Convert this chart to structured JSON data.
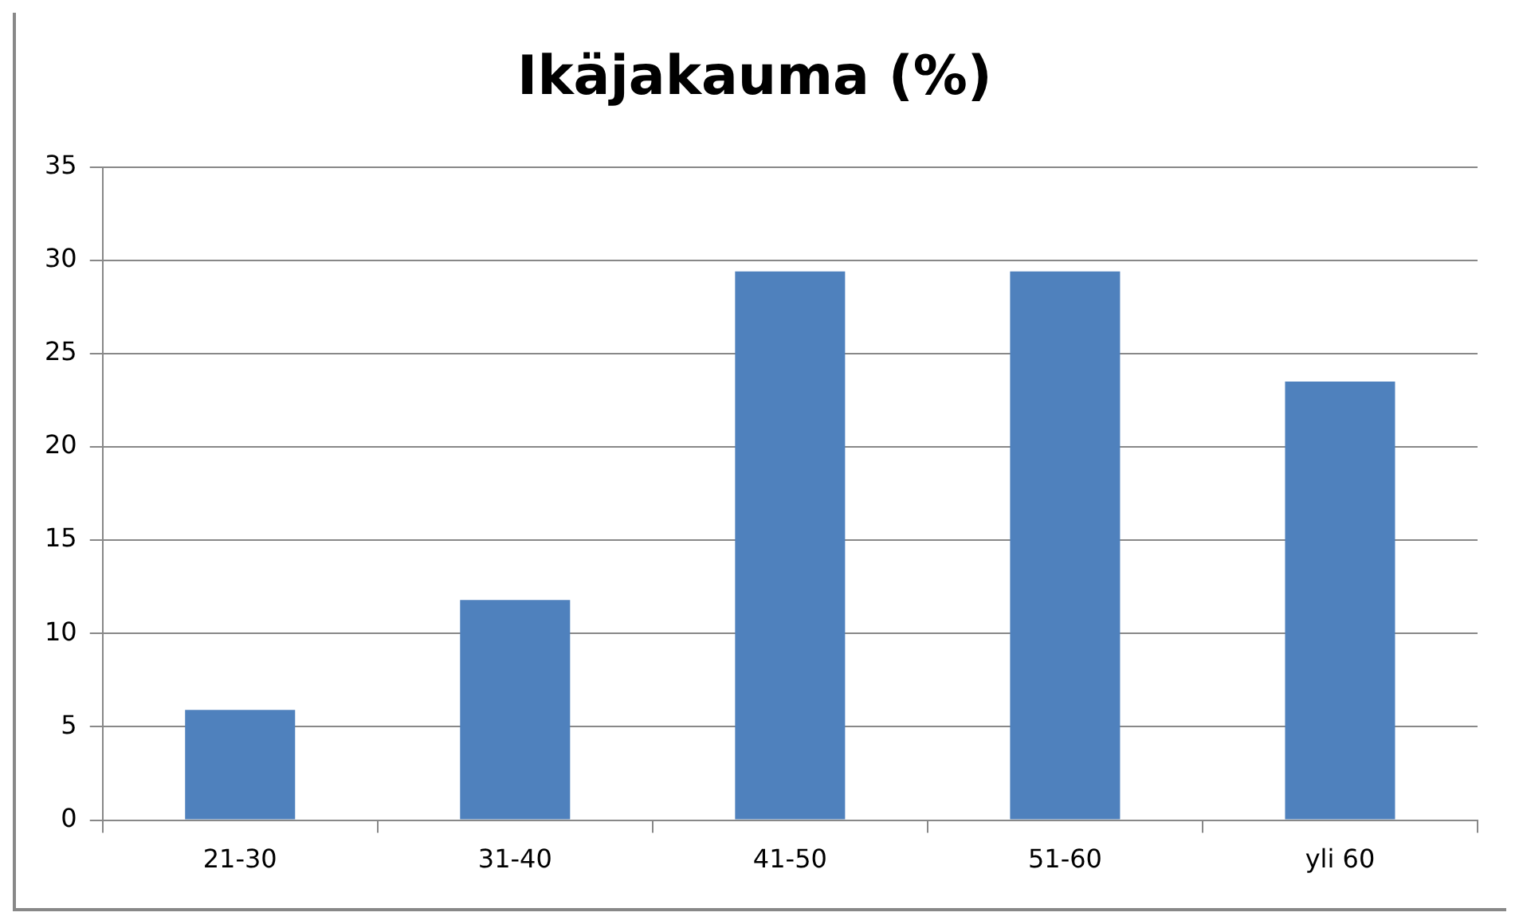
{
  "chart_data": {
    "type": "bar",
    "title": "Ikäjakauma (%)",
    "categories": [
      "21-30",
      "31-40",
      "41-50",
      "51-60",
      "yli 60"
    ],
    "values": [
      5.9,
      11.8,
      29.4,
      29.4,
      23.5
    ],
    "color": "#4f81bd",
    "ylim": [
      0,
      35
    ],
    "yticks": [
      0,
      5,
      10,
      15,
      20,
      25,
      30,
      35
    ],
    "grid": "y"
  }
}
